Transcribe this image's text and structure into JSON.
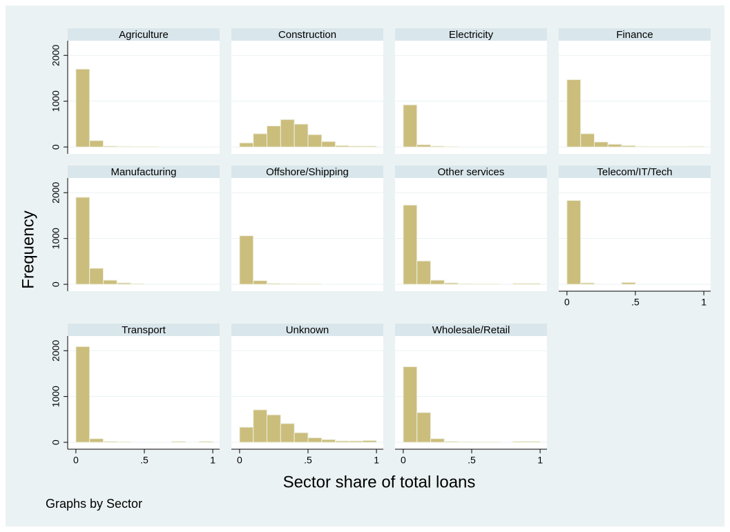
{
  "chart_data": {
    "type": "histogram",
    "ylabel": "Frequency",
    "xlabel": "Sector share of total loans",
    "note": "Graphs by Sector",
    "color": "#cbbd7c",
    "bins": [
      0,
      0.1,
      0.2,
      0.3,
      0.4,
      0.5,
      0.6,
      0.7,
      0.8,
      0.9,
      1
    ],
    "xlim": [
      -0.06,
      1.05
    ],
    "ylim": [
      -150,
      2320
    ],
    "xticks": [
      0,
      {
        "value": 0.5,
        "label": ".5"
      },
      1
    ],
    "yticks": [
      0,
      1000,
      2000
    ],
    "grid": true,
    "panels": [
      {
        "title": "Agriculture",
        "counts": [
          1700,
          140,
          20,
          15,
          10,
          10,
          0,
          0,
          0,
          0
        ]
      },
      {
        "title": "Construction",
        "counts": [
          90,
          290,
          460,
          600,
          500,
          270,
          120,
          30,
          20,
          20
        ]
      },
      {
        "title": "Electricity",
        "counts": [
          920,
          50,
          20,
          10,
          0,
          0,
          0,
          0,
          0,
          0
        ]
      },
      {
        "title": "Finance",
        "counts": [
          1470,
          290,
          110,
          60,
          30,
          15,
          10,
          10,
          10,
          15
        ]
      },
      {
        "title": "Manufacturing",
        "counts": [
          1900,
          350,
          90,
          30,
          15,
          0,
          0,
          0,
          0,
          0
        ]
      },
      {
        "title": "Offshore/Shipping",
        "counts": [
          1060,
          80,
          20,
          15,
          10,
          10,
          0,
          0,
          0,
          0
        ]
      },
      {
        "title": "Other services",
        "counts": [
          1730,
          510,
          90,
          30,
          15,
          10,
          10,
          0,
          20,
          20
        ]
      },
      {
        "title": "Telecom/IT/Tech",
        "counts": [
          1830,
          30,
          0,
          0,
          40,
          0,
          0,
          0,
          0,
          0
        ]
      },
      {
        "title": "Transport",
        "counts": [
          2090,
          80,
          20,
          15,
          0,
          0,
          0,
          20,
          0,
          20
        ]
      },
      {
        "title": "Unknown",
        "counts": [
          330,
          710,
          600,
          410,
          210,
          100,
          60,
          30,
          30,
          40
        ]
      },
      {
        "title": "Wholesale/Retail",
        "counts": [
          1650,
          650,
          80,
          20,
          15,
          10,
          10,
          0,
          20,
          20
        ]
      }
    ]
  }
}
